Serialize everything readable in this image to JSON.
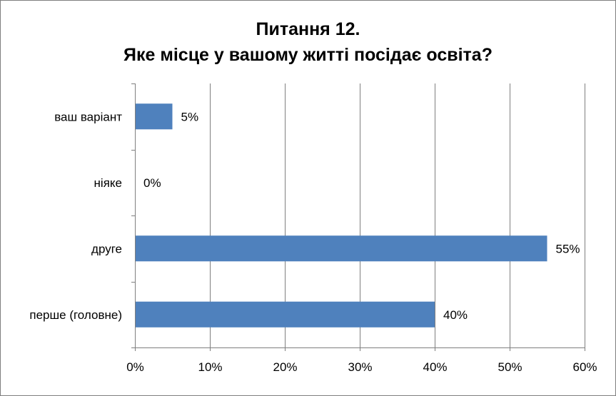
{
  "chart_data": {
    "type": "bar",
    "orientation": "horizontal",
    "title_lines": [
      "Питання 12.",
      "Яке місце у вашому житті посідає освіта?"
    ],
    "categories": [
      "перше (головне)",
      "друге",
      "ніяке",
      "ваш варіант"
    ],
    "values": [
      40,
      55,
      0,
      5
    ],
    "data_labels": [
      "40%",
      "55%",
      "0%",
      "5%"
    ],
    "xlim": [
      0,
      60
    ],
    "x_ticks": [
      0,
      10,
      20,
      30,
      40,
      50,
      60
    ],
    "x_tick_labels": [
      "0%",
      "10%",
      "20%",
      "30%",
      "40%",
      "50%",
      "60%"
    ],
    "grid": true,
    "legend": "none",
    "bar_color": "#4f81bd",
    "grid_color": "#7f7f7f"
  }
}
